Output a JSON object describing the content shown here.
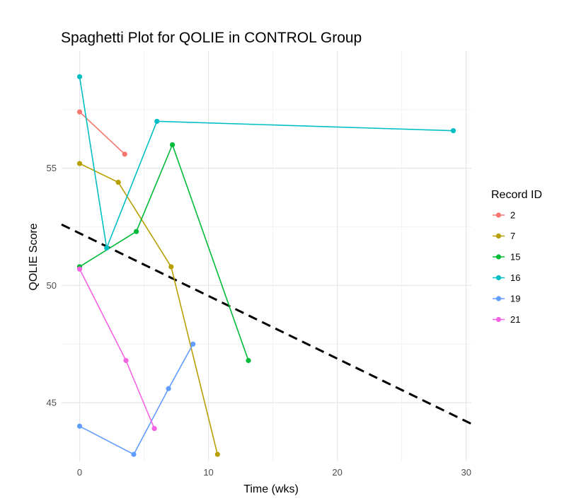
{
  "chart_data": {
    "type": "line",
    "title": "Spaghetti Plot for QOLIE in CONTROL Group",
    "xlabel": "Time (wks)",
    "ylabel": "QOLIE Score",
    "xlim": [
      -1.4,
      30.4
    ],
    "ylim": [
      42.5,
      60.0
    ],
    "xticks": [
      0,
      10,
      20,
      30
    ],
    "yticks": [
      45,
      50,
      55
    ],
    "grid": true,
    "legend": {
      "title": "Record ID",
      "placement": "right"
    },
    "series": [
      {
        "name": "2",
        "color": "#F8766D",
        "points": [
          [
            0,
            57.4
          ],
          [
            3.5,
            55.6
          ]
        ]
      },
      {
        "name": "7",
        "color": "#B79F00",
        "points": [
          [
            0,
            55.2
          ],
          [
            3.0,
            54.4
          ],
          [
            7.1,
            50.8
          ],
          [
            10.7,
            42.8
          ]
        ]
      },
      {
        "name": "15",
        "color": "#00BA38",
        "points": [
          [
            0,
            50.8
          ],
          [
            4.4,
            52.3
          ],
          [
            7.2,
            56.0
          ],
          [
            13.1,
            46.8
          ]
        ]
      },
      {
        "name": "16",
        "color": "#00BFC4",
        "points": [
          [
            0,
            58.9
          ],
          [
            2.1,
            51.6
          ],
          [
            6.0,
            57.0
          ],
          [
            29.0,
            56.6
          ]
        ]
      },
      {
        "name": "19",
        "color": "#619CFF",
        "points": [
          [
            0,
            44.0
          ],
          [
            4.2,
            42.8
          ],
          [
            6.9,
            45.6
          ],
          [
            8.8,
            47.5
          ]
        ]
      },
      {
        "name": "21",
        "color": "#F564E3",
        "points": [
          [
            0,
            50.7
          ],
          [
            3.6,
            46.8
          ],
          [
            5.8,
            43.9
          ]
        ]
      }
    ],
    "trend_line": {
      "style": "dashed",
      "color": "#000000",
      "from": [
        -1.4,
        52.6
      ],
      "to": [
        30.4,
        44.1
      ]
    }
  }
}
